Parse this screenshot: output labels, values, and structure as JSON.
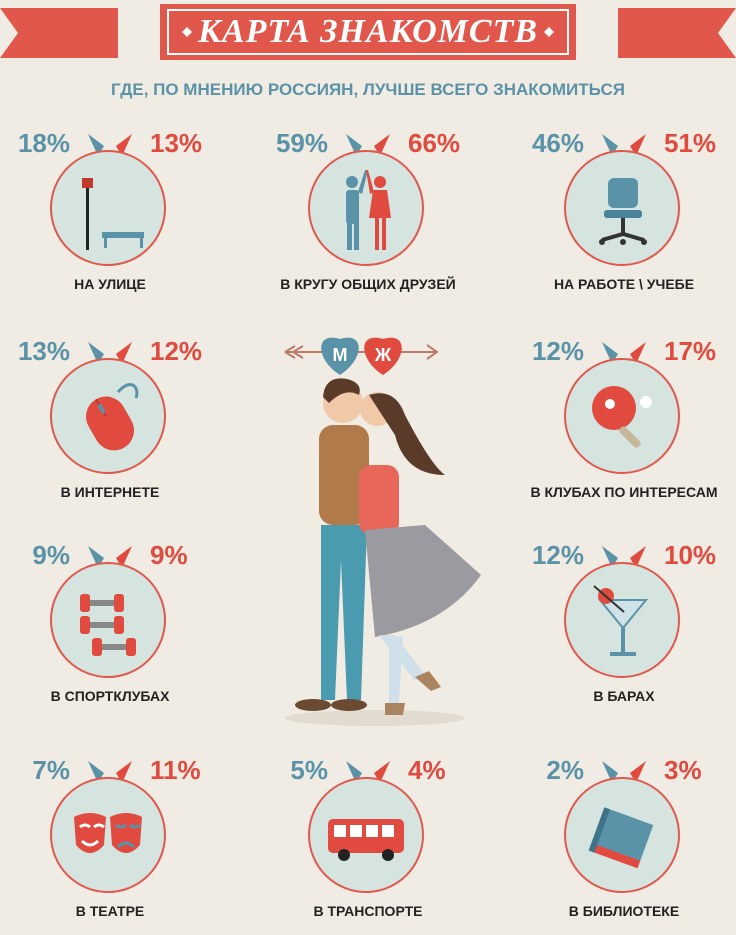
{
  "title": "КАРТА ЗНАКОМСТВ",
  "subtitle": "ГДЕ, ПО МНЕНИЮ РОССИЯН, ЛУЧШЕ ВСЕГО ЗНАКОМИТЬСЯ",
  "center": {
    "male_letter": "М",
    "female_letter": "Ж"
  },
  "colors": {
    "male": "#5a93a8",
    "female": "#e04a3f",
    "background": "#f1ece3",
    "circle_fill": "#d5e4df"
  },
  "items": [
    {
      "label": "НА УЛИЦЕ",
      "male": "18%",
      "female": "13%",
      "icon": "street-lamp-bench-icon"
    },
    {
      "label": "В КРУГУ ОБЩИХ ДРУЗЕЙ",
      "male": "59%",
      "female": "66%",
      "icon": "friends-high-five-icon"
    },
    {
      "label": "НА РАБОТЕ \\ УЧЕБЕ",
      "male": "46%",
      "female": "51%",
      "icon": "office-chair-icon"
    },
    {
      "label": "В ИНТЕРНЕТЕ",
      "male": "13%",
      "female": "12%",
      "icon": "computer-mouse-icon"
    },
    {
      "label": "В КЛУБАХ ПО ИНТЕРЕСАМ",
      "male": "12%",
      "female": "17%",
      "icon": "ping-pong-icon"
    },
    {
      "label": "В СПОРТКЛУБАХ",
      "male": "9%",
      "female": "9%",
      "icon": "dumbbells-icon"
    },
    {
      "label": "В БАРАХ",
      "male": "12%",
      "female": "10%",
      "icon": "cocktail-icon"
    },
    {
      "label": "В ТЕАТРЕ",
      "male": "7%",
      "female": "11%",
      "icon": "theatre-masks-icon"
    },
    {
      "label": "В ТРАНСПОРТЕ",
      "male": "5%",
      "female": "4%",
      "icon": "bus-icon"
    },
    {
      "label": "В БИБЛИОТЕКЕ",
      "male": "2%",
      "female": "3%",
      "icon": "book-icon"
    }
  ]
}
